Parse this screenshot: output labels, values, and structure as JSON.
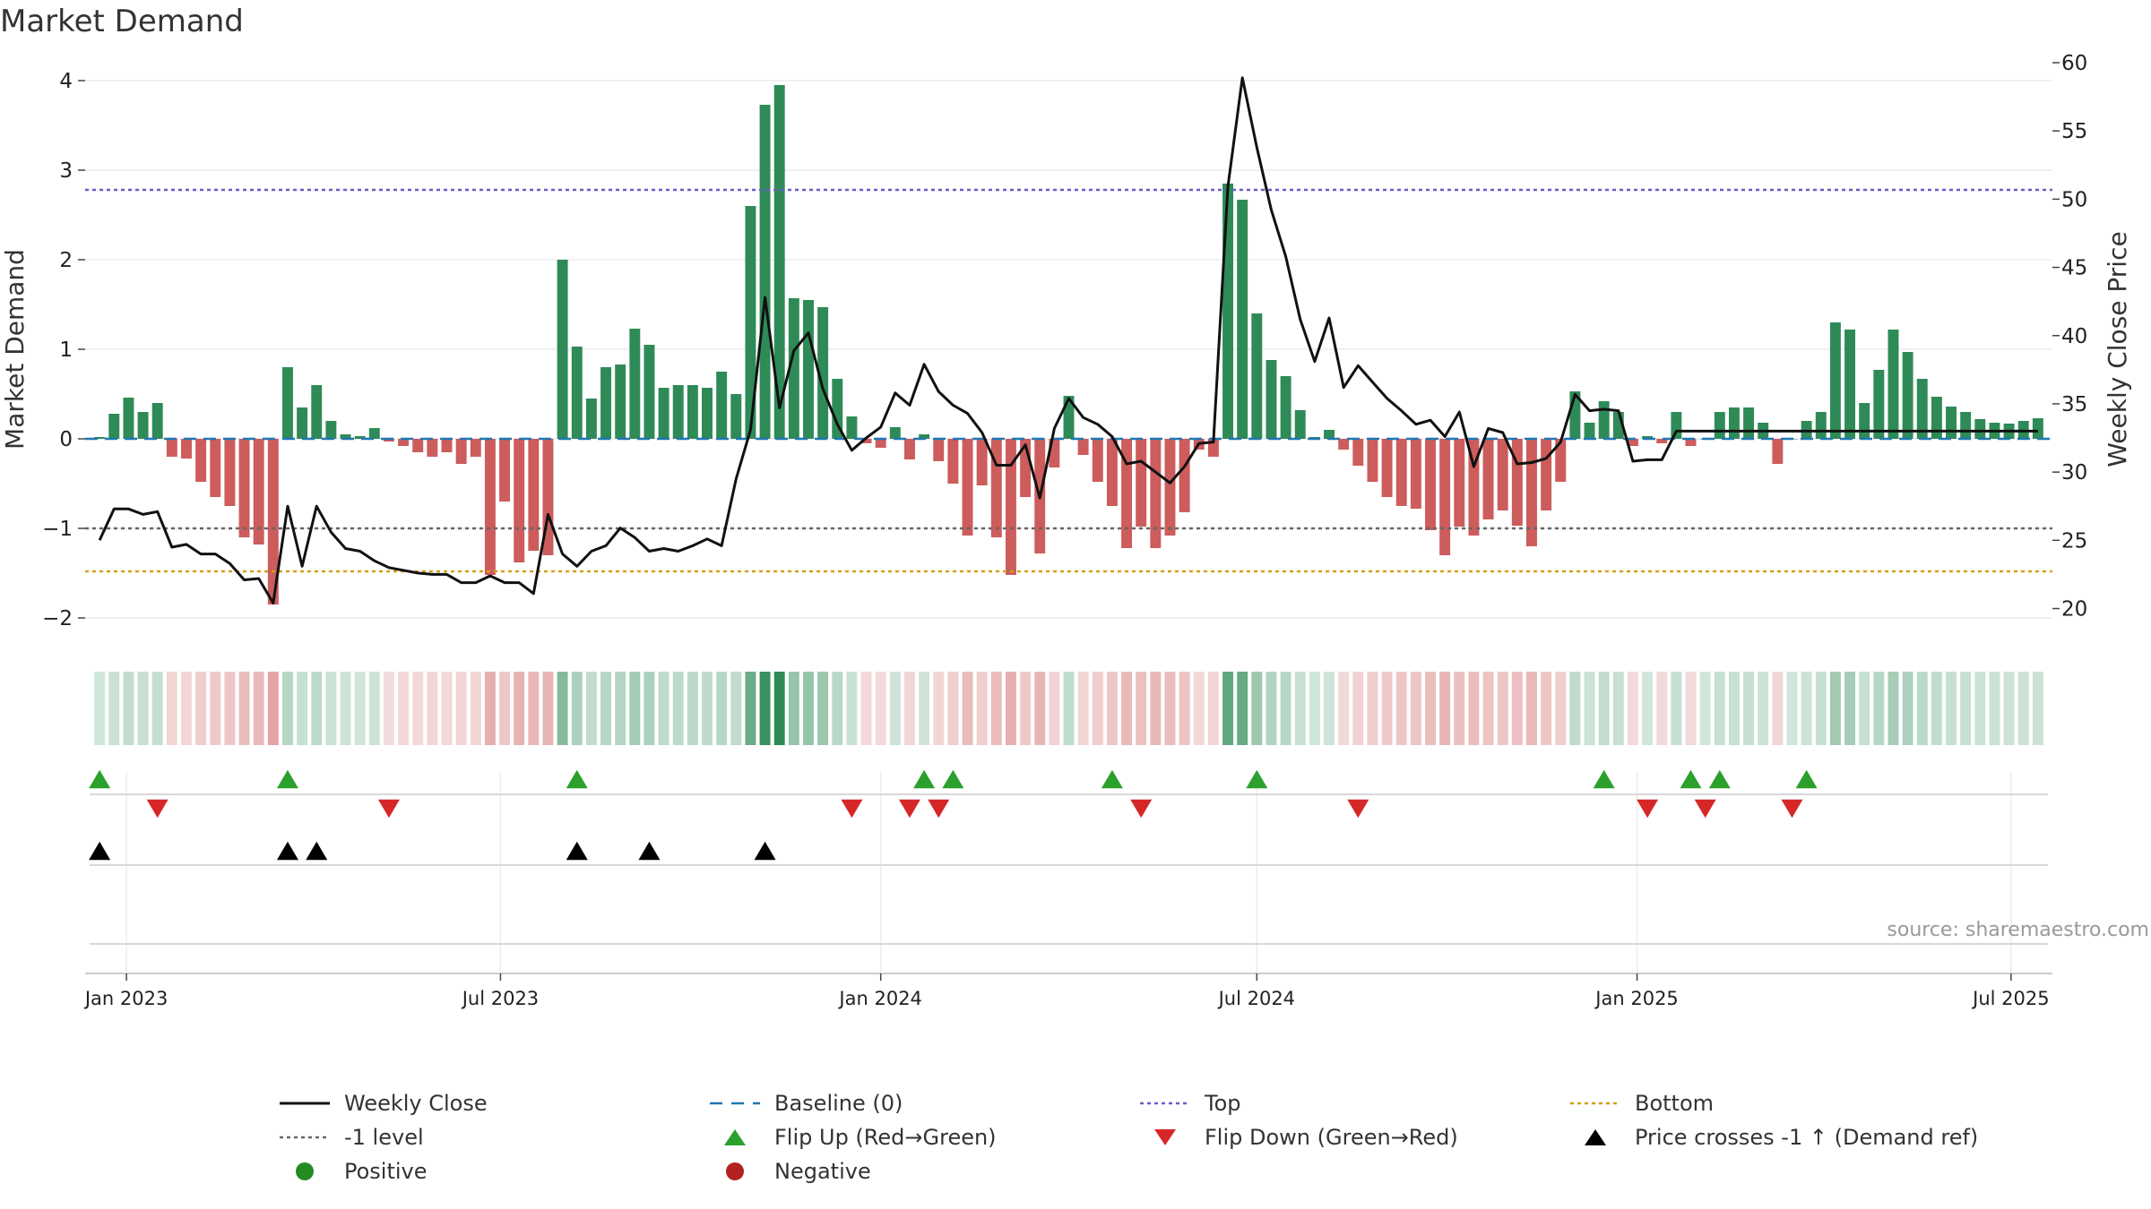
{
  "chart_data": {
    "type": "bar",
    "title": "Market Demand",
    "ylabel": "Market Demand",
    "y2label": "Weekly Close Price",
    "ylim": [
      -2.2,
      4.2
    ],
    "y2lim": [
      18,
      60
    ],
    "yticks": [
      -2,
      -1,
      0,
      1,
      2,
      3,
      4
    ],
    "yticklabels": [
      "−2",
      "−1",
      "0",
      "1",
      "2",
      "3",
      "4"
    ],
    "y2ticks": [
      20,
      25,
      30,
      35,
      40,
      45,
      50,
      55,
      60
    ],
    "x_start": "2022-12-19",
    "x_step_days": 7,
    "xlim": [
      "2022-12-12",
      "2025-07-21"
    ],
    "xticks": [
      "2023-01-01",
      "2023-07-01",
      "2024-01-01",
      "2024-07-01",
      "2025-01-01",
      "2025-07-01"
    ],
    "xticklabels": [
      "Jan 2023",
      "Jul 2023",
      "Jan 2024",
      "Jul 2024",
      "Jan 2025",
      "Jul 2025"
    ],
    "demand": [
      0.02,
      0.28,
      0.46,
      0.3,
      0.4,
      -0.2,
      -0.22,
      -0.48,
      -0.65,
      -0.75,
      -1.1,
      -1.18,
      -1.85,
      0.8,
      0.35,
      0.6,
      0.2,
      0.05,
      0.03,
      0.12,
      -0.03,
      -0.08,
      -0.15,
      -0.2,
      -0.15,
      -0.28,
      -0.2,
      -1.52,
      -0.7,
      -1.38,
      -1.25,
      -1.3,
      2.0,
      1.03,
      0.45,
      0.8,
      0.83,
      1.23,
      1.05,
      0.57,
      0.6,
      0.6,
      0.57,
      0.75,
      0.5,
      2.6,
      3.73,
      3.95,
      1.57,
      1.55,
      1.47,
      0.67,
      0.25,
      -0.05,
      -0.1,
      0.13,
      -0.23,
      0.05,
      -0.25,
      -0.5,
      -1.08,
      -0.52,
      -1.1,
      -1.52,
      -0.65,
      -1.28,
      -0.32,
      0.48,
      -0.18,
      -0.48,
      -0.75,
      -1.22,
      -0.98,
      -1.22,
      -1.08,
      -0.82,
      -0.12,
      -0.2,
      2.85,
      2.67,
      1.4,
      0.88,
      0.7,
      0.32,
      0.02,
      0.1,
      -0.12,
      -0.3,
      -0.48,
      -0.65,
      -0.75,
      -0.78,
      -1.02,
      -1.3,
      -0.98,
      -1.08,
      -0.9,
      -0.8,
      -0.97,
      -1.2,
      -0.8,
      -0.48,
      0.53,
      0.18,
      0.42,
      0.3,
      -0.08,
      0.03,
      -0.05,
      0.3,
      -0.08,
      0.0,
      0.3,
      0.35,
      0.35,
      0.18,
      -0.28,
      0.0,
      0.2,
      0.3,
      1.3,
      1.22,
      0.4,
      0.77,
      1.22,
      0.97,
      0.67,
      0.47,
      0.36,
      0.3,
      0.22,
      0.18,
      0.17,
      0.2,
      0.23
    ],
    "price": [
      25.0,
      27.3,
      27.3,
      26.9,
      27.1,
      24.5,
      24.7,
      24.0,
      24.0,
      23.3,
      22.1,
      22.2,
      20.4,
      27.5,
      23.1,
      27.5,
      25.6,
      24.4,
      24.2,
      23.5,
      23.0,
      22.8,
      22.6,
      22.5,
      22.5,
      21.9,
      21.9,
      22.4,
      21.9,
      21.9,
      21.1,
      26.9,
      24.0,
      23.1,
      24.2,
      24.6,
      25.9,
      25.2,
      24.2,
      24.4,
      24.2,
      24.6,
      25.1,
      24.6,
      29.5,
      33.1,
      42.8,
      34.7,
      38.9,
      40.2,
      36.1,
      33.5,
      31.6,
      32.5,
      33.3,
      35.8,
      34.9,
      37.9,
      35.9,
      34.9,
      34.3,
      32.9,
      30.5,
      30.5,
      32.0,
      28.1,
      33.2,
      35.4,
      34.0,
      33.5,
      32.6,
      30.6,
      30.8,
      30.0,
      29.2,
      30.4,
      32.1,
      32.2,
      50.9,
      58.9,
      53.8,
      49.2,
      45.8,
      41.2,
      38.1,
      41.3,
      36.2,
      37.8,
      36.6,
      35.4,
      34.5,
      33.5,
      33.8,
      32.6,
      34.4,
      30.4,
      33.2,
      32.9,
      30.6,
      30.7,
      31.0,
      32.2,
      35.7,
      34.5,
      34.6,
      34.5,
      30.8,
      30.9,
      30.9,
      33.0,
      33.0,
      33.0,
      33.0,
      33.0,
      33.0,
      33.0,
      33.0,
      33.0,
      33.0,
      33.0,
      33.0,
      33.0,
      33.0,
      33.0,
      33.0,
      33.0,
      33.0,
      33.0,
      33.0,
      33.0,
      33.0,
      33.0,
      33.0,
      33.0,
      33.0
    ],
    "top_level": 2.78,
    "bottom_level": -1.48,
    "minus_one_level": -1.0,
    "flip_up": [
      "2022-12-19",
      "2023-03-20",
      "2023-08-07",
      "2024-01-22",
      "2024-02-05",
      "2024-04-22",
      "2024-07-01",
      "2024-12-16",
      "2025-01-27",
      "2025-02-10",
      "2025-03-24"
    ],
    "flip_down": [
      "2023-01-16",
      "2023-05-08",
      "2023-12-18",
      "2024-01-15",
      "2024-01-29",
      "2024-05-06",
      "2024-08-19",
      "2025-01-06",
      "2025-02-03",
      "2025-03-17"
    ],
    "price_crosses": [
      "2022-12-19",
      "2023-03-20",
      "2023-04-03",
      "2023-08-07",
      "2023-09-11",
      "2023-11-06"
    ],
    "legend": [
      {
        "label": "Weekly Close"
      },
      {
        "label": "Baseline (0)"
      },
      {
        "label": "Top"
      },
      {
        "label": "Bottom"
      },
      {
        "label": "-1 level"
      },
      {
        "label": "Flip Up (Red→Green)"
      },
      {
        "label": "Flip Down (Green→Red)"
      },
      {
        "label": "Price crosses -1 ↑ (Demand ref)"
      },
      {
        "label": "Positive"
      },
      {
        "label": "Negative"
      }
    ],
    "grid": true,
    "legend_position": "bottom"
  },
  "source": "source: sharemaestro.com",
  "colors": {
    "positive": "#2e8b57",
    "negative": "#cd5c5c",
    "price": "#111111",
    "baseline": "#1f77b4",
    "top": "#6a5acd",
    "bottom": "#d4a017",
    "minus_one": "#666666",
    "flip_up": "#2ca02c",
    "flip_down": "#d62728",
    "cross": "#000000",
    "legend_positive": "#228b22",
    "legend_negative": "#b22222"
  }
}
